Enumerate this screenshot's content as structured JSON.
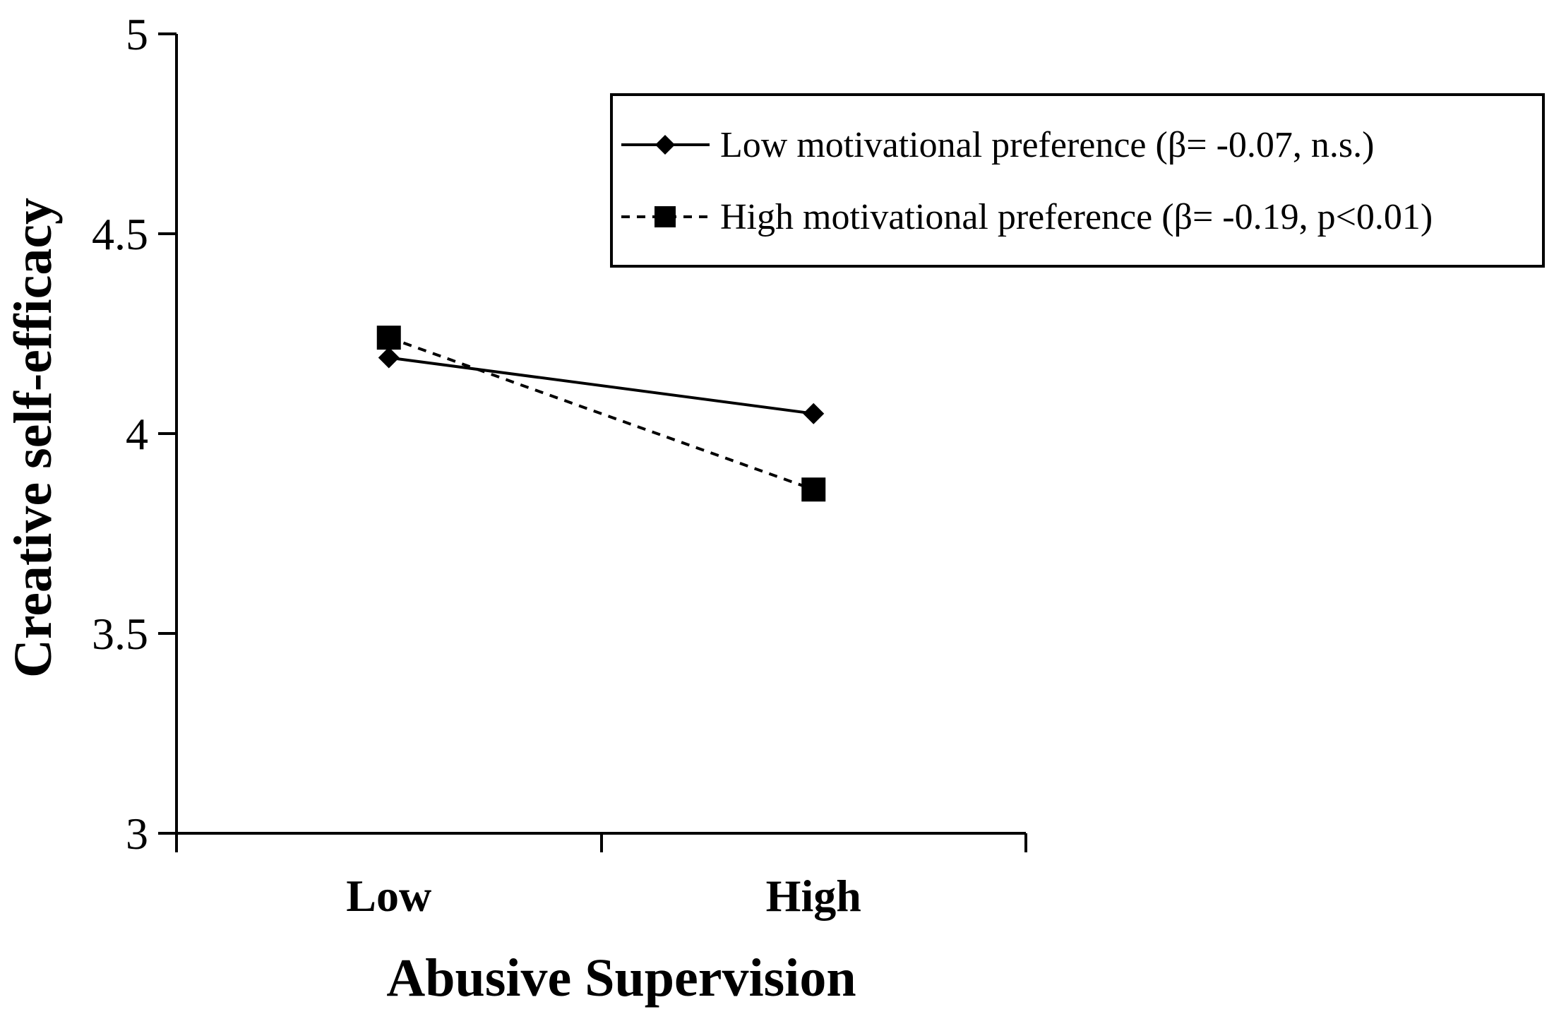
{
  "chart_data": {
    "type": "line",
    "title": "",
    "xlabel": "Abusive Supervision",
    "ylabel": "Creative self-efficacy",
    "categories": [
      "Low",
      "High"
    ],
    "ylim": [
      3,
      5
    ],
    "yticks": [
      3,
      3.5,
      4,
      4.5,
      5
    ],
    "ytick_labels": [
      "3",
      "3.5",
      "4",
      "4.5",
      "5"
    ],
    "grid": false,
    "legend_position": "top-right",
    "series": [
      {
        "name": "Low motivational preference (β= -0.07, n.s.)",
        "values": [
          4.19,
          4.05
        ],
        "line_style": "solid",
        "marker": "diamond",
        "color": "#000000"
      },
      {
        "name": "High motivational preference (β= -0.19, p<0.01)",
        "values": [
          4.24,
          3.86
        ],
        "line_style": "dashed",
        "marker": "square",
        "color": "#000000"
      }
    ]
  }
}
